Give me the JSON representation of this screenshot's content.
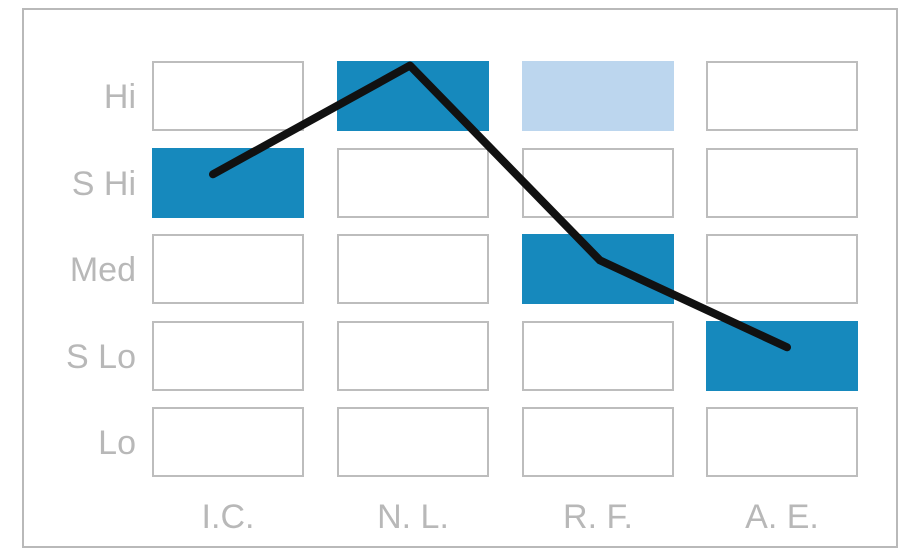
{
  "chart_data": {
    "type": "heatmap",
    "title": "",
    "xlabel": "",
    "ylabel": "",
    "columns": [
      "I.C.",
      "N. L.",
      "R. F.",
      "A. E."
    ],
    "rows": [
      "Hi",
      "S Hi",
      "Med",
      "S Lo",
      "Lo"
    ],
    "cells": [
      {
        "column": "I.C.",
        "row": "S Hi",
        "shade": "dark"
      },
      {
        "column": "N. L.",
        "row": "Hi",
        "shade": "dark"
      },
      {
        "column": "R. F.",
        "row": "Hi",
        "shade": "light"
      },
      {
        "column": "R. F.",
        "row": "Med",
        "shade": "dark"
      },
      {
        "column": "A. E.",
        "row": "S Lo",
        "shade": "dark"
      }
    ],
    "line": {
      "points": [
        {
          "column": "I.C.",
          "level": 3.6
        },
        {
          "column": "N. L.",
          "level": 4.85
        },
        {
          "column": "R. F.",
          "level": 2.6
        },
        {
          "column": "A. E.",
          "level": 1.6
        }
      ],
      "y_scale": {
        "Lo": 0,
        "S Lo": 1.5,
        "Med": 2.5,
        "S Hi": 3.5,
        "Hi": 4.5
      }
    },
    "grid": true,
    "colors": {
      "dark": "#1689bd",
      "light": "#bcd6ee",
      "empty": "#ffffff",
      "cell_border": "#bdbdbd",
      "line": "#111111",
      "tick_text": "#b8b8b8"
    }
  }
}
